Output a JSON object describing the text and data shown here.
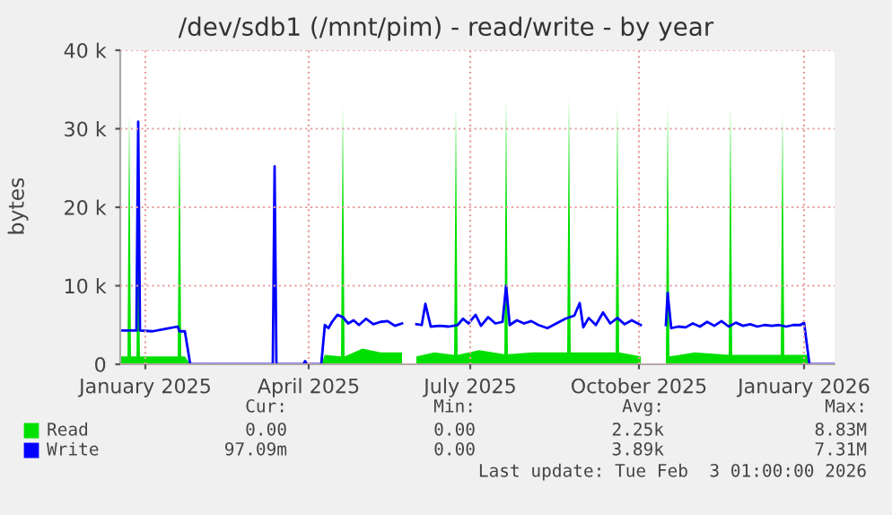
{
  "chart_data": {
    "type": "line",
    "title": "/dev/sdb1 (/mnt/pim) - read/write - by year",
    "ylabel": "bytes",
    "xlim": [
      "2025-01-01",
      "2026-02-03"
    ],
    "xticks": [
      {
        "value": "2025-01-15",
        "label": "January 2025"
      },
      {
        "value": "2025-04-16",
        "label": "April 2025"
      },
      {
        "value": "2025-07-15",
        "label": "July 2025"
      },
      {
        "value": "2025-10-17",
        "label": "October 2025"
      },
      {
        "value": "2026-01-17",
        "label": "January 2026"
      }
    ],
    "ylim": [
      0,
      40000
    ],
    "yticks": [
      0,
      {
        "value": 10000,
        "label": "10 k"
      },
      {
        "value": 20000,
        "label": "20 k"
      },
      {
        "value": 30000,
        "label": "30 k"
      },
      {
        "value": 40000,
        "label": "40 k"
      }
    ],
    "grid": true,
    "legend": "bottom",
    "series": [
      {
        "name": "Read",
        "type": "area",
        "color": "#00e000",
        "x": [
          "2025-01-01",
          "2025-01-05",
          "2025-01-06",
          "2025-01-07",
          "2025-01-10",
          "2025-01-11",
          "2025-01-12",
          "2025-02-02",
          "2025-02-03",
          "2025-02-04",
          "2025-02-06",
          "2025-02-09",
          "2025-04-23",
          "2025-04-25",
          "2025-05-04",
          "2025-05-05",
          "2025-05-06",
          "2025-05-16",
          "2025-05-26",
          "2025-06-07",
          "2025-06-08",
          "2025-06-15",
          "2025-06-25",
          "2025-07-06",
          "2025-07-07",
          "2025-07-08",
          "2025-07-20",
          "2025-08-03",
          "2025-08-04",
          "2025-08-05",
          "2025-08-19",
          "2025-09-07",
          "2025-09-08",
          "2025-09-09",
          "2025-09-18",
          "2025-10-04",
          "2025-10-05",
          "2025-10-06",
          "2025-10-18",
          "2025-10-19",
          "2025-11-01",
          "2025-11-02",
          "2025-11-03",
          "2025-11-17",
          "2025-12-06",
          "2025-12-07",
          "2025-12-08",
          "2026-01-04",
          "2026-01-05",
          "2026-01-06",
          "2026-01-19",
          "2026-01-20",
          "2026-02-03"
        ],
        "values": [
          1000,
          1000,
          32000,
          1000,
          1000,
          20000,
          1000,
          1000,
          32000,
          1000,
          1000,
          0,
          0,
          1200,
          1000,
          33000,
          1000,
          2000,
          1500,
          1500,
          null,
          1000,
          1500,
          1200,
          33000,
          1200,
          1800,
          1300,
          34000,
          1300,
          1500,
          1500,
          34000,
          1500,
          1500,
          1500,
          33000,
          1500,
          1000,
          null,
          1000,
          33000,
          1000,
          1500,
          1200,
          33000,
          1200,
          1200,
          32000,
          1200,
          1200,
          0,
          0
        ]
      },
      {
        "name": "Write",
        "color": "#0000ff",
        "x": [
          "2025-01-01",
          "2025-01-06",
          "2025-01-10",
          "2025-01-11",
          "2025-01-12",
          "2025-01-19",
          "2025-01-26",
          "2025-02-02",
          "2025-02-03",
          "2025-02-06",
          "2025-02-09",
          "2025-03-27",
          "2025-03-28",
          "2025-03-29",
          "2025-04-13",
          "2025-04-14",
          "2025-04-15",
          "2025-04-23",
          "2025-04-25",
          "2025-04-27",
          "2025-04-29",
          "2025-05-02",
          "2025-05-05",
          "2025-05-08",
          "2025-05-11",
          "2025-05-14",
          "2025-05-18",
          "2025-05-22",
          "2025-05-26",
          "2025-05-30",
          "2025-06-03",
          "2025-06-07",
          "2025-06-08",
          "2025-06-15",
          "2025-06-18",
          "2025-06-20",
          "2025-06-23",
          "2025-06-28",
          "2025-07-03",
          "2025-07-08",
          "2025-07-11",
          "2025-07-14",
          "2025-07-18",
          "2025-07-21",
          "2025-07-25",
          "2025-07-29",
          "2025-08-02",
          "2025-08-04",
          "2025-08-06",
          "2025-08-10",
          "2025-08-14",
          "2025-08-18",
          "2025-08-22",
          "2025-08-27",
          "2025-09-01",
          "2025-09-06",
          "2025-09-11",
          "2025-09-14",
          "2025-09-16",
          "2025-09-19",
          "2025-09-23",
          "2025-09-27",
          "2025-10-01",
          "2025-10-05",
          "2025-10-09",
          "2025-10-13",
          "2025-10-18",
          "2025-10-19",
          "2025-11-01",
          "2025-11-02",
          "2025-11-04",
          "2025-11-08",
          "2025-11-12",
          "2025-11-16",
          "2025-11-20",
          "2025-11-24",
          "2025-11-28",
          "2025-12-02",
          "2025-12-06",
          "2025-12-10",
          "2025-12-14",
          "2025-12-18",
          "2025-12-22",
          "2025-12-26",
          "2025-12-30",
          "2026-01-03",
          "2026-01-07",
          "2026-01-11",
          "2026-01-15",
          "2026-01-17",
          "2026-01-20",
          "2026-02-03"
        ],
        "values": [
          4300,
          4300,
          4300,
          30900,
          4300,
          4200,
          4500,
          4800,
          4200,
          4200,
          0,
          0,
          25200,
          0,
          0,
          400,
          0,
          0,
          5000,
          4600,
          5400,
          6300,
          6000,
          5200,
          5600,
          5000,
          5800,
          5100,
          5400,
          5500,
          4900,
          5200,
          null,
          5100,
          5000,
          7700,
          4800,
          4900,
          4800,
          5000,
          5800,
          5200,
          6300,
          4900,
          6000,
          5200,
          5400,
          10000,
          5000,
          5600,
          5200,
          5500,
          5000,
          4600,
          5200,
          5800,
          6200,
          7800,
          4700,
          5900,
          5000,
          6600,
          5200,
          5900,
          5100,
          5600,
          5000,
          null,
          5000,
          9100,
          4600,
          4800,
          4700,
          5200,
          4800,
          5400,
          4900,
          5500,
          4800,
          5300,
          4900,
          5100,
          4800,
          5000,
          4900,
          5000,
          4800,
          5000,
          5000,
          5300,
          0,
          0
        ]
      }
    ],
    "annotations": [
      "Cur:",
      "Min:",
      "Avg:",
      "Max:",
      "0.00",
      "0.00",
      "2.25k",
      "8.83M",
      "97.09m",
      "0.00",
      "3.89k",
      "7.31M",
      "Last update: Tue Feb  3 01:00:00 2026"
    ]
  }
}
